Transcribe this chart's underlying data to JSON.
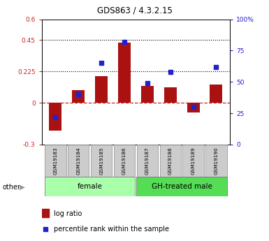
{
  "title": "GDS863 / 4.3.2.15",
  "samples": [
    "GSM19183",
    "GSM19184",
    "GSM19185",
    "GSM19186",
    "GSM19187",
    "GSM19188",
    "GSM19189",
    "GSM19190"
  ],
  "log_ratio": [
    -0.2,
    0.09,
    0.19,
    0.43,
    0.12,
    0.11,
    -0.07,
    0.13
  ],
  "percentile_rank": [
    22,
    40,
    65,
    82,
    49,
    58,
    30,
    62
  ],
  "ylim_left": [
    -0.3,
    0.6
  ],
  "ylim_right": [
    0,
    100
  ],
  "yticks_left": [
    -0.3,
    0,
    0.225,
    0.45,
    0.6
  ],
  "yticks_right": [
    0,
    25,
    50,
    75,
    100
  ],
  "ytick_labels_left": [
    "-0.3",
    "0",
    "0.225",
    "0.45",
    "0.6"
  ],
  "ytick_labels_right": [
    "0",
    "25",
    "50",
    "75",
    "100%"
  ],
  "hlines": [
    0.225,
    0.45
  ],
  "bar_color": "#aa1111",
  "dot_color": "#2222cc",
  "dashed_line_color": "#cc2222",
  "group1_label": "female",
  "group2_label": "GH-treated male",
  "group1_color": "#aaffaa",
  "group2_color": "#55dd55",
  "group1_indices": [
    0,
    1,
    2,
    3
  ],
  "group2_indices": [
    4,
    5,
    6,
    7
  ],
  "legend_bar_label": "log ratio",
  "legend_dot_label": "percentile rank within the sample",
  "other_label": "other",
  "sample_box_color": "#cccccc",
  "sample_box_edge": "#888888"
}
